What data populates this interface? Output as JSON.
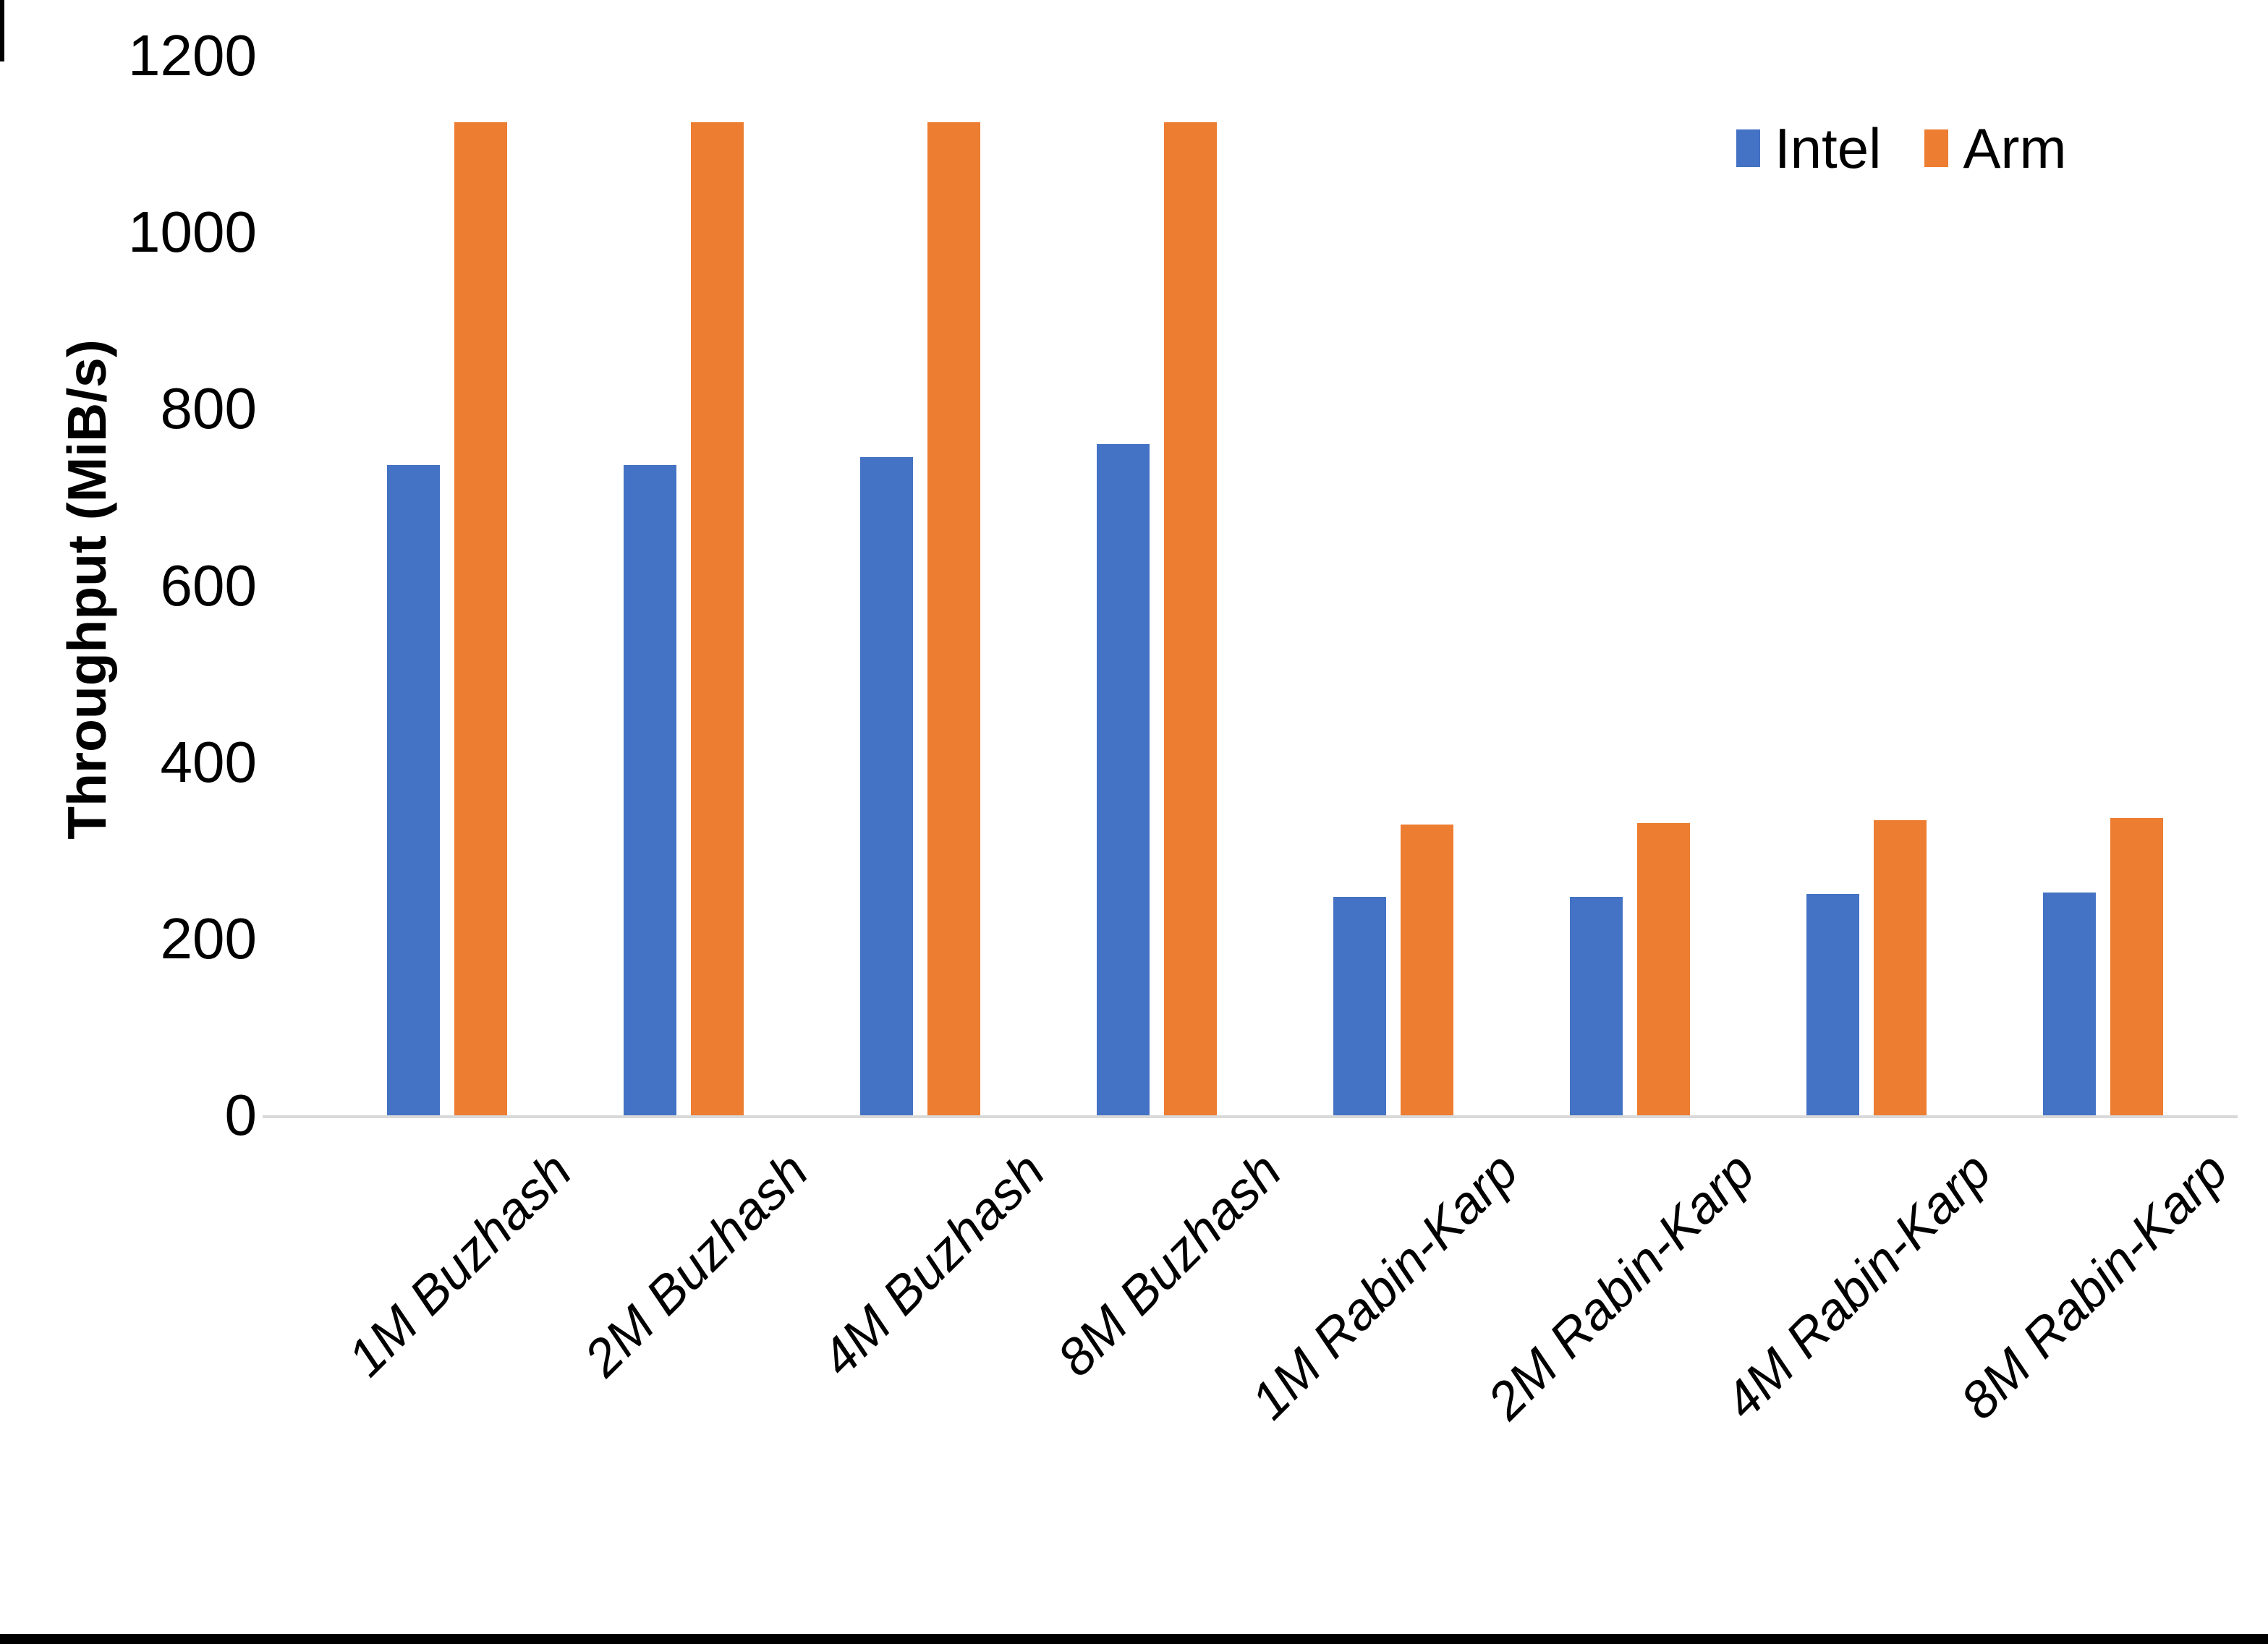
{
  "page": {
    "background": "#ffffff",
    "bottom_bar_color": "#000000"
  },
  "chart_data": {
    "type": "bar",
    "title": "",
    "xlabel": "",
    "ylabel": "Throughput (MiB/s)",
    "categories": [
      "1M Buzhash",
      "2M Buzhash",
      "4M Buzhash",
      "8M Buzhash",
      "1M Rabin-Karp",
      "2M Rabin-Karp",
      "4M Rabin-Karp",
      "8M Rabin-Karp"
    ],
    "series": [
      {
        "name": "Intel",
        "color": "#4472C4",
        "values": [
          736,
          736,
          745,
          760,
          247,
          247,
          251,
          252
        ]
      },
      {
        "name": "Arm",
        "color": "#ED7D31",
        "values": [
          1125,
          1125,
          1125,
          1125,
          329,
          331,
          334,
          337
        ]
      }
    ],
    "ylim": [
      0,
      1200
    ],
    "yticks": [
      0,
      200,
      400,
      600,
      800,
      1000,
      1200
    ],
    "legend_position": "top-right",
    "grid": false,
    "axis_line_color": "#D9D9D9",
    "text_color": "#000000"
  }
}
